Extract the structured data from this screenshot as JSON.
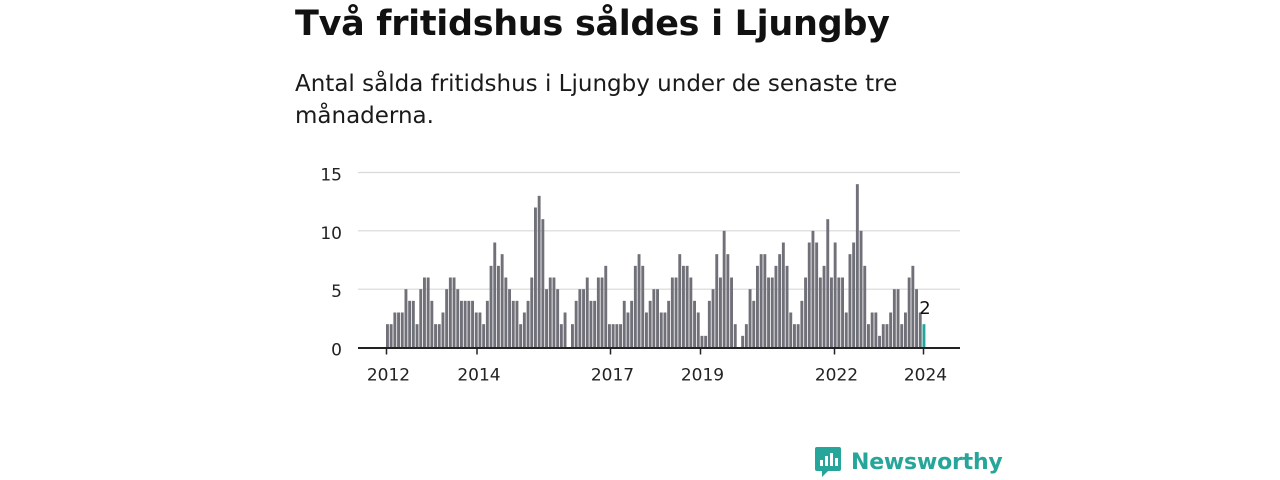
{
  "title": "Två fritidshus såldes i Ljungby",
  "subtitle": "Antal sålda fritidshus i Ljungby under de senaste tre månaderna.",
  "brand": {
    "name": "Newsworthy",
    "icon": "newsworthy-logo-icon",
    "color": "#26a69a"
  },
  "colors": {
    "bar": "#707079",
    "highlight": "#26a69a",
    "grid": "#d9d9d9",
    "axis": "#222222"
  },
  "chart_data": {
    "type": "bar",
    "ylim": [
      0,
      15
    ],
    "y_ticks": [
      0,
      5,
      10,
      15
    ],
    "x_tick_labels": [
      "2012",
      "2014",
      "2017",
      "2019",
      "2022",
      "2024"
    ],
    "grid": true,
    "last_value_label": "2",
    "series": [
      {
        "values": [
          2,
          2,
          3,
          3,
          3,
          5,
          4,
          4,
          2,
          5,
          6,
          6,
          4,
          2,
          2,
          3,
          5,
          6,
          6,
          5,
          4,
          4,
          4,
          4,
          3,
          3,
          2,
          4,
          7,
          9,
          7,
          8,
          6,
          5,
          4,
          4,
          2,
          3,
          4,
          6,
          12,
          13,
          11,
          5,
          6,
          6,
          5,
          2,
          3,
          0,
          2,
          4,
          5,
          5,
          6,
          4,
          4,
          6,
          6,
          7,
          2,
          2,
          2,
          2,
          4,
          3,
          4,
          7,
          8,
          7,
          3,
          4,
          5,
          5,
          3,
          3,
          4,
          6,
          6,
          8,
          7,
          7,
          6,
          4,
          3,
          1,
          1,
          4,
          5,
          8,
          6,
          10,
          8,
          6,
          2,
          0,
          1,
          2,
          5,
          4,
          7,
          8,
          8,
          6,
          6,
          7,
          8,
          9,
          7,
          3,
          2,
          2,
          4,
          6,
          9,
          10,
          9,
          6,
          7,
          11,
          6,
          9,
          6,
          6,
          3,
          8,
          9,
          14,
          10,
          7,
          2,
          3,
          3,
          1,
          2,
          2,
          3,
          5,
          5,
          2,
          3,
          6,
          7,
          5,
          3,
          2
        ]
      }
    ]
  }
}
